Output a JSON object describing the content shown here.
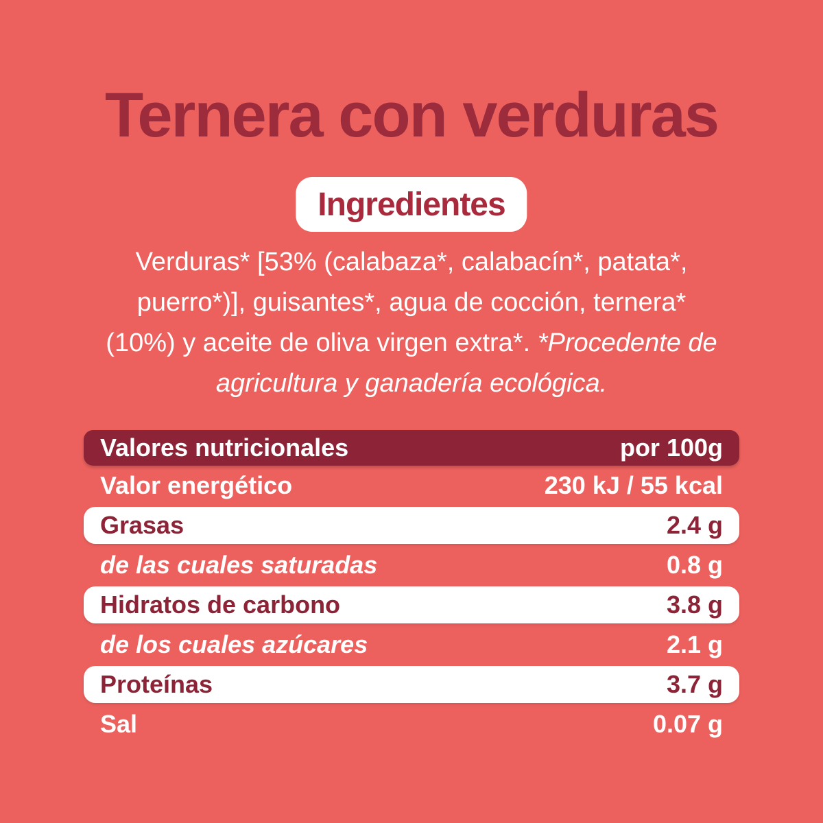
{
  "product": {
    "title": "Ternera con verduras"
  },
  "ingredients": {
    "badge_label": "Ingredientes",
    "line1": "Verduras* [53% (calabaza*, calabacín*, patata*,",
    "line2": "puerro*)], guisantes*, agua de cocción, ternera*",
    "line3_regular": "(10%) y aceite de oliva virgen extra*.",
    "line3_italic": "*Procedente de",
    "line4_italic": "agricultura y ganadería ecológica."
  },
  "nutrition_table": {
    "header": {
      "label": "Valores nutricionales",
      "value": "por 100g"
    },
    "rows": [
      {
        "label": "Valor energético",
        "value": "230 kJ / 55 kcal"
      },
      {
        "label": "Grasas",
        "value": "2.4 g"
      },
      {
        "label": "de las cuales saturadas",
        "value": "0.8 g"
      },
      {
        "label": "Hidratos de carbono",
        "value": "3.8 g"
      },
      {
        "label": "de los cuales azúcares",
        "value": "2.1 g"
      },
      {
        "label": "Proteínas",
        "value": "3.7 g"
      },
      {
        "label": "Sal",
        "value": "0.07 g"
      }
    ]
  },
  "colors": {
    "background": "#EC615E",
    "title_text": "#9C2B3C",
    "badge_background": "#FFFFFF",
    "badge_text": "#A82A3C",
    "table_header_background": "#8C2336",
    "table_header_text": "#FFFFFF",
    "white_row_background": "#FFFFFF",
    "white_row_text": "#8C2336",
    "plain_row_text": "#FFFFFF",
    "ingredients_text": "#FFFFFF"
  }
}
